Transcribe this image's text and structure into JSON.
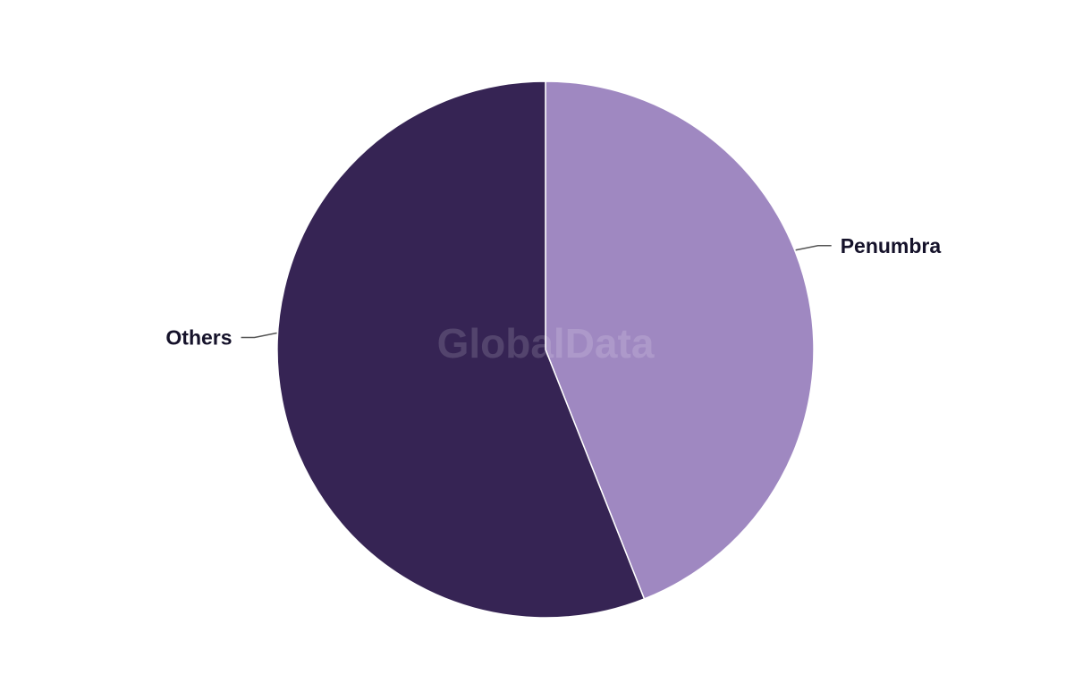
{
  "chart_data": {
    "type": "pie",
    "title": "",
    "slices": [
      {
        "label": "Penumbra",
        "value": 44,
        "color": "#9f88c1"
      },
      {
        "label": "Others",
        "value": 56,
        "color": "#362454"
      }
    ],
    "start_angle": "12 o'clock",
    "direction": "clockwise",
    "legend": "none",
    "labels": "outside with leader lines"
  },
  "watermark": "GlobalData"
}
